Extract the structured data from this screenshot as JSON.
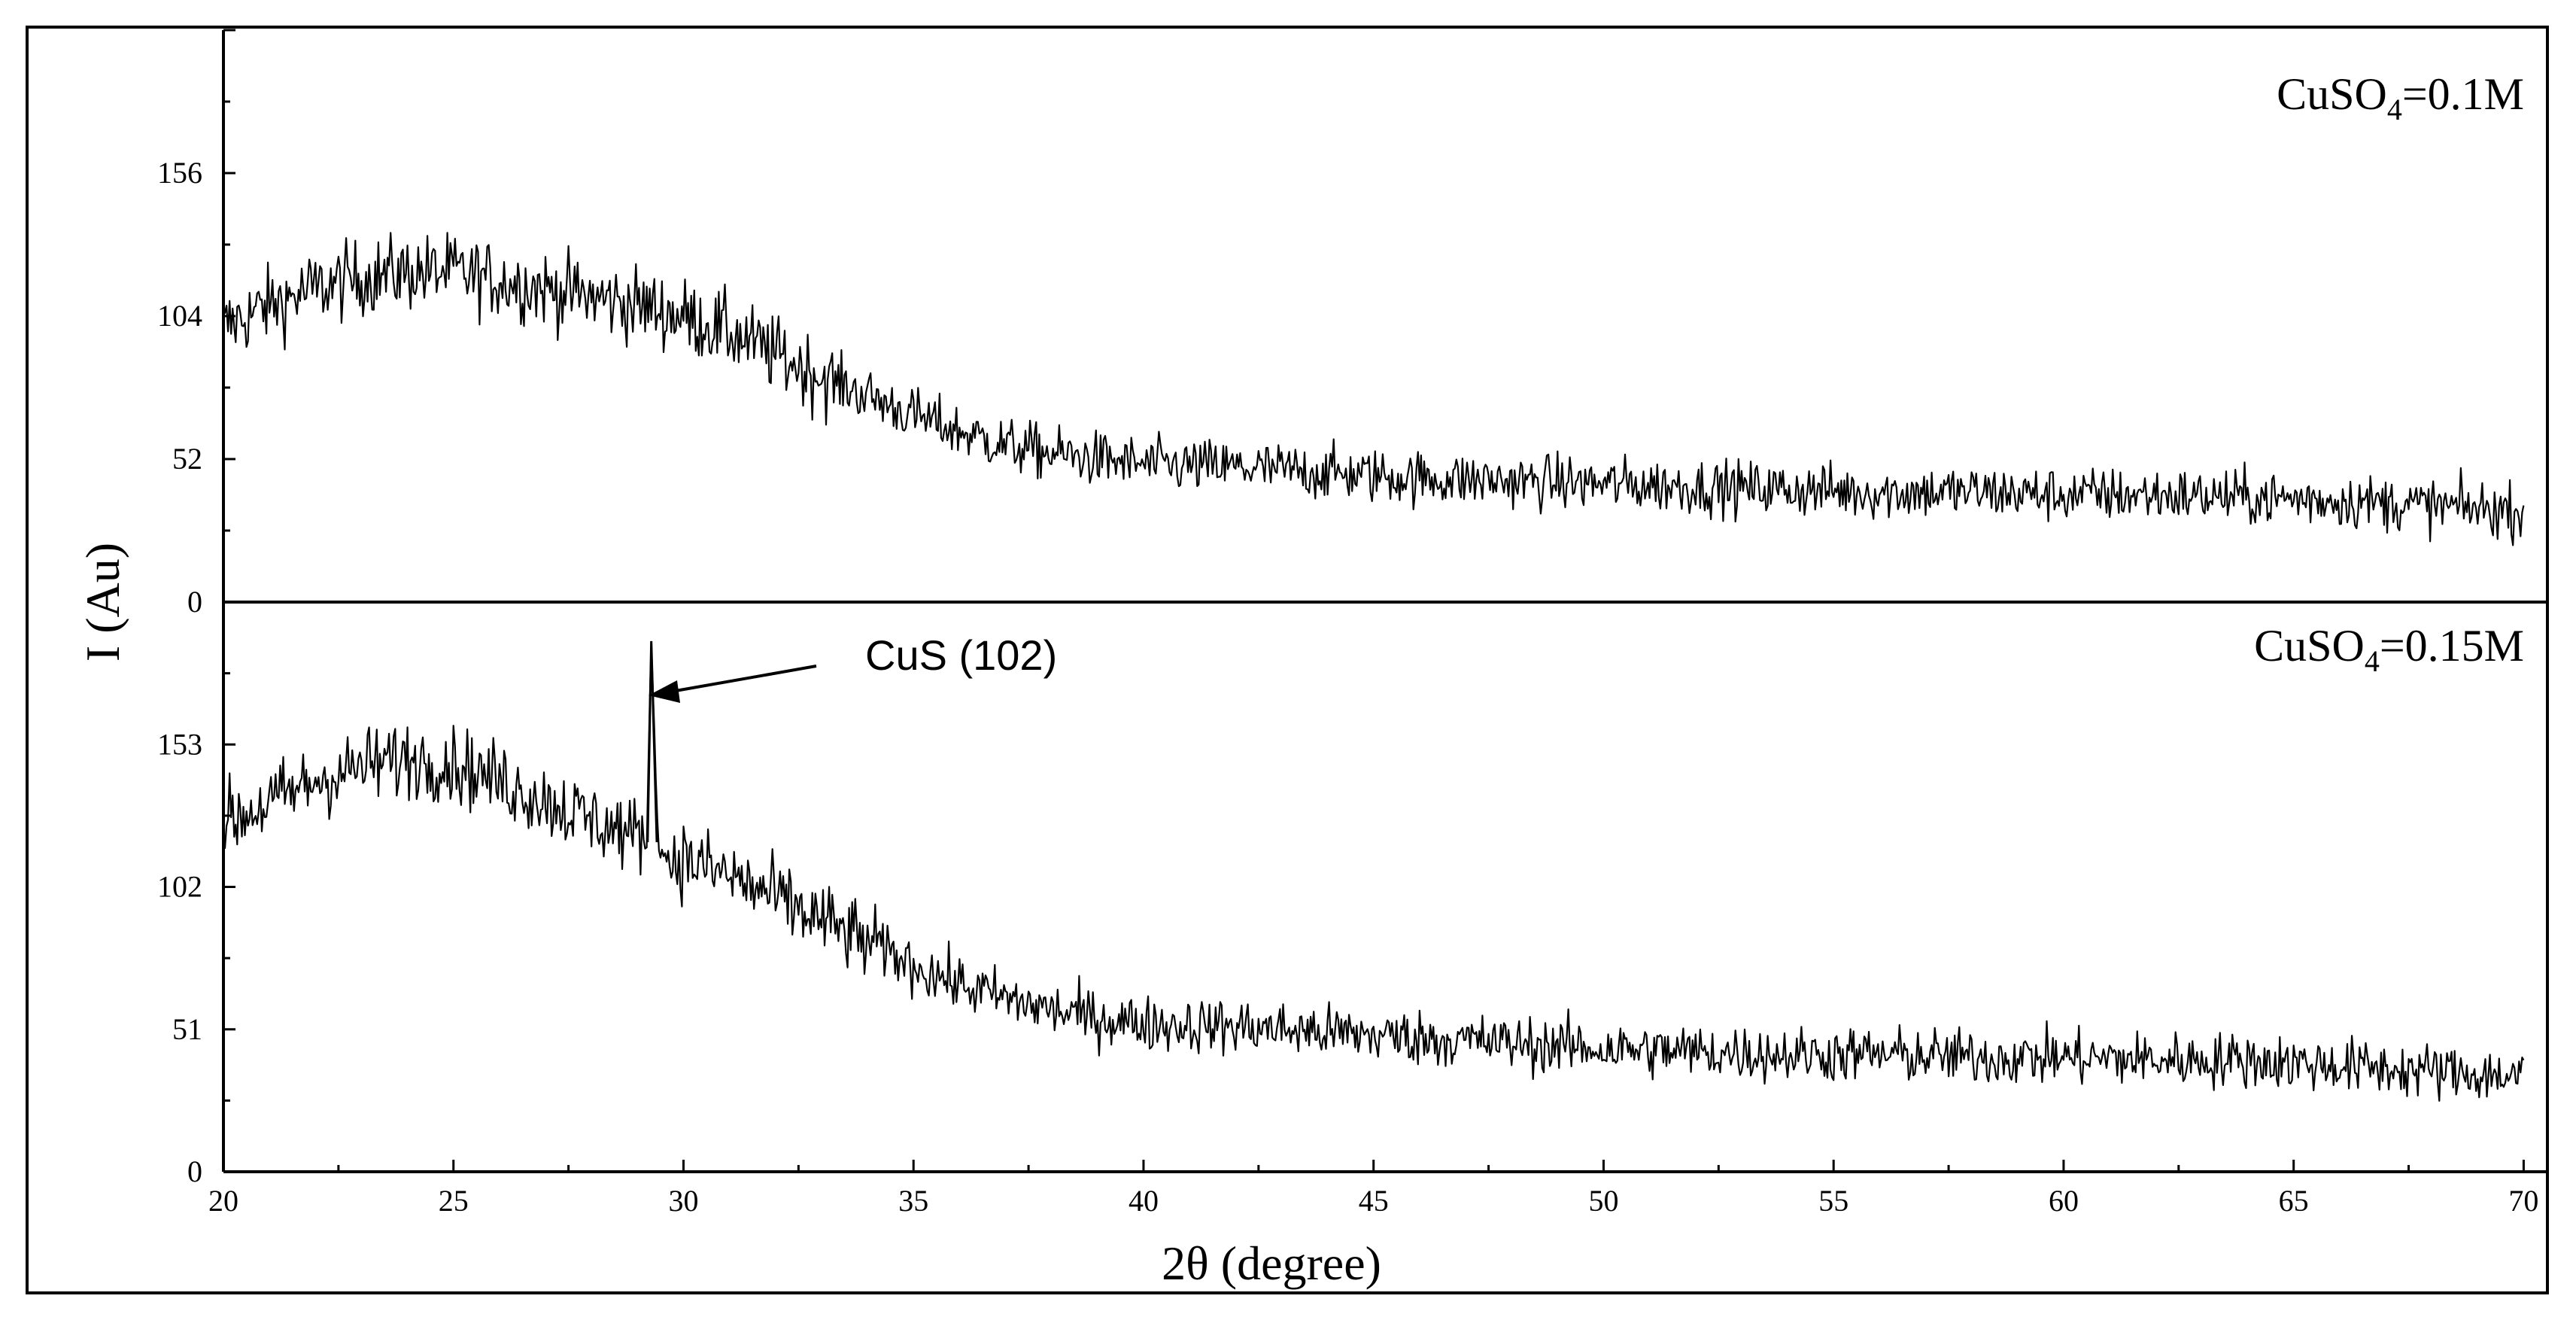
{
  "chart_data": {
    "type": "line",
    "xlabel": "2θ (degree)",
    "ylabel": "I (Au)",
    "xlim": [
      20,
      70.5
    ],
    "x_ticks": [
      20,
      25,
      30,
      35,
      40,
      45,
      50,
      55,
      60,
      65,
      70
    ],
    "grid": false,
    "panels": [
      {
        "id": "top",
        "label_main": "CuSO",
        "label_sub": "4",
        "label_tail": "=0.1M",
        "ylim": [
          0,
          208
        ],
        "y_ticks": [
          0,
          52,
          104,
          156
        ],
        "series": [
          {
            "x": [
              20,
              21,
              22,
              23,
              24,
              25,
              26,
              27,
              28,
              29,
              30,
              31,
              32,
              33,
              34,
              35,
              36,
              37,
              38,
              39,
              40,
              42,
              44,
              46,
              48,
              50,
              52,
              54,
              56,
              58,
              60,
              62,
              64,
              66,
              68,
              70
            ],
            "values": [
              100,
              108,
              114,
              118,
              120,
              120,
              117,
              114,
              111,
              108,
              104,
              98,
              90,
              82,
              75,
              68,
              62,
              57,
              54,
              52,
              50,
              49,
              47,
              45,
              44,
              43,
              42,
              41,
              40,
              40,
              39,
              39,
              38,
              37,
              35,
              33
            ]
          }
        ]
      },
      {
        "id": "bottom",
        "label_main": "CuSO",
        "label_sub": "4",
        "label_tail": "=0.15M",
        "ylim": [
          0,
          204
        ],
        "y_ticks": [
          0,
          51,
          102,
          153
        ],
        "series": [
          {
            "x": [
              20,
              21,
              22,
              23,
              24,
              25,
              26,
              27,
              28,
              29,
              29.2,
              29.3,
              29.45,
              29.6,
              30,
              31,
              32,
              33,
              34,
              35,
              36,
              37,
              38,
              39,
              40,
              42,
              44,
              46,
              48,
              50,
              52,
              54,
              56,
              58,
              60,
              62,
              64,
              66,
              68,
              70
            ],
            "values": [
              125,
              132,
              140,
              145,
              148,
              146,
              140,
              133,
              126,
              120,
              118,
              190,
              118,
              112,
              112,
              106,
              98,
              90,
              82,
              74,
              67,
              62,
              58,
              55,
              53,
              52,
              50,
              48,
              46,
              44,
              43,
              42,
              42,
              41,
              41,
              40,
              40,
              38,
              36,
              34
            ]
          }
        ]
      }
    ],
    "annotations": [
      {
        "text": "CuS (102)",
        "panel": "bottom",
        "x": 29.3,
        "y": 190
      }
    ]
  }
}
